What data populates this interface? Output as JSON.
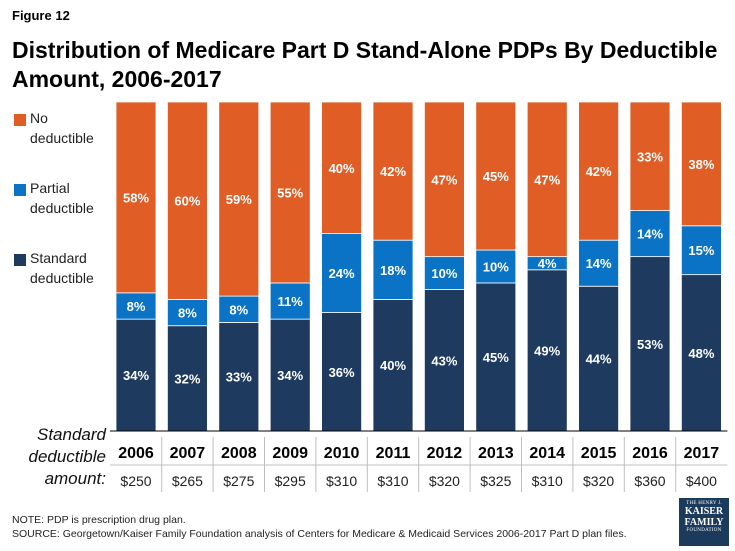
{
  "figure_label": "Figure 12",
  "chart_data": {
    "type": "bar",
    "stacked": true,
    "normalized": true,
    "title": "Distribution of Medicare Part D Stand-Alone PDPs By Deductible Amount, 2006-2017",
    "categories": [
      "2006",
      "2007",
      "2008",
      "2009",
      "2010",
      "2011",
      "2012",
      "2013",
      "2014",
      "2015",
      "2016",
      "2017"
    ],
    "series": [
      {
        "name": "Standard deductible",
        "color": "#1e3a5f",
        "values": [
          34,
          32,
          33,
          34,
          36,
          40,
          43,
          45,
          49,
          44,
          53,
          48
        ]
      },
      {
        "name": "Partial deductible",
        "color": "#0b73c5",
        "values": [
          8,
          8,
          8,
          11,
          24,
          18,
          10,
          10,
          4,
          14,
          14,
          15
        ]
      },
      {
        "name": "No deductible",
        "color": "#e05d26",
        "values": [
          58,
          60,
          59,
          55,
          40,
          42,
          47,
          45,
          47,
          42,
          33,
          38
        ]
      }
    ],
    "label_suffix": "%",
    "legend": [
      {
        "line1": "No",
        "line2": "deductible",
        "color": "#e05d26"
      },
      {
        "line1": "Partial",
        "line2": "deductible",
        "color": "#0b73c5"
      },
      {
        "line1": "Standard",
        "line2": "deductible",
        "color": "#1e3a5f"
      }
    ],
    "x_axis_title": "Standard deductible amount:",
    "standard_deductible_amounts": [
      "$250",
      "$265",
      "$275",
      "$295",
      "$310",
      "$310",
      "$320",
      "$325",
      "$310",
      "$320",
      "$360",
      "$400"
    ]
  },
  "notes": {
    "note": "NOTE: PDP is prescription drug plan.",
    "source": "SOURCE: Georgetown/Kaiser Family Foundation analysis of Centers for Medicare & Medicaid Services 2006-2017 Part D plan files."
  },
  "logo": {
    "line1": "THE HENRY J.",
    "line2a": "KAISER",
    "line2b": "FAMILY",
    "line3": "FOUNDATION"
  }
}
